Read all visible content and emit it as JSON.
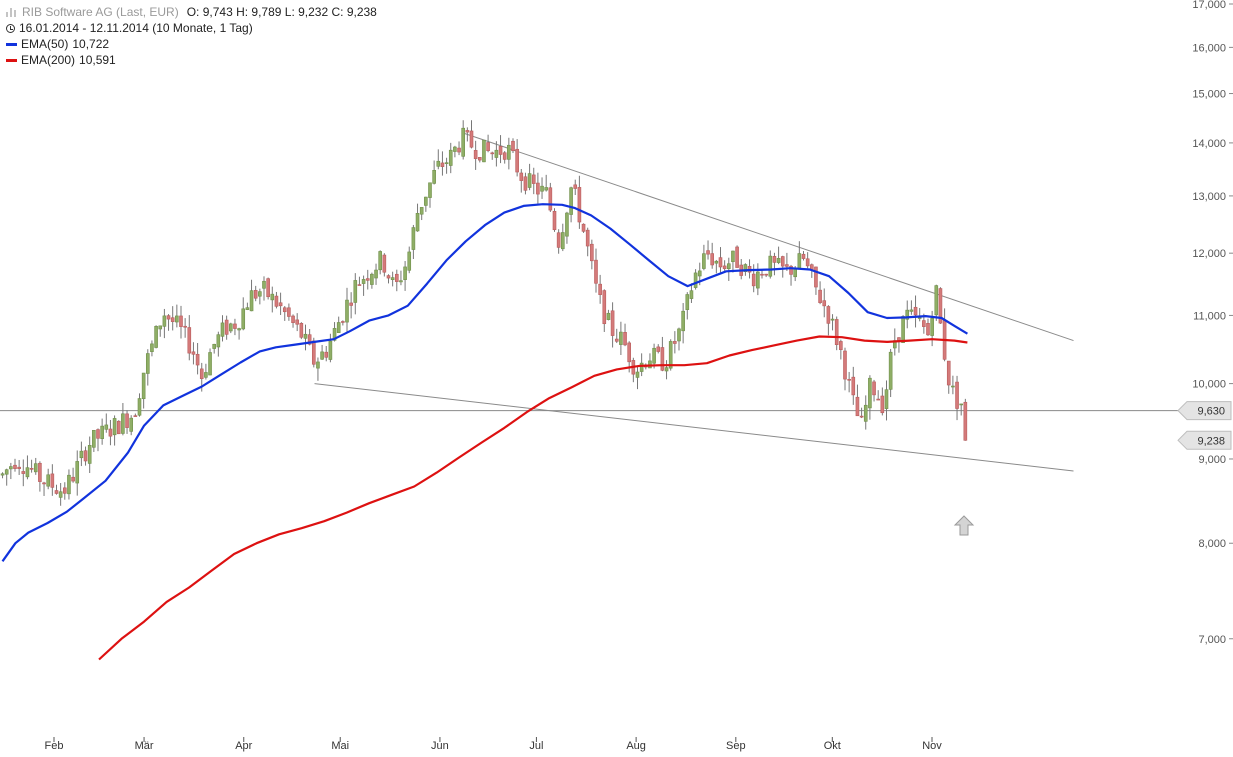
{
  "header": {
    "title": "RIB Software AG (Last, EUR)",
    "ohlc": "O: 9,743  H: 9,789  L: 9,232  C: 9,238",
    "range": "16.01.2014 - 12.11.2014 (10 Monate, 1 Tag)",
    "logo_icon": "bar-chart-logo-icon",
    "clock_icon": "clock-icon"
  },
  "legend": [
    {
      "label": "EMA(50)",
      "value": "10,722",
      "color": "#1133dd"
    },
    {
      "label": "EMA(200)",
      "value": "10,591",
      "color": "#dd1111"
    }
  ],
  "price_labels": {
    "current": "9,630",
    "last": "9,238"
  },
  "arrow_icon": "up-arrow-icon",
  "chart_data": {
    "type": "line",
    "title": "",
    "xlabel": "",
    "ylabel": "",
    "y_scale": "log",
    "ylim": [
      6800,
      17000
    ],
    "y_ticks": [
      {
        "v": 7000,
        "label": "7,000"
      },
      {
        "v": 8000,
        "label": "8,000"
      },
      {
        "v": 9000,
        "label": "9,000"
      },
      {
        "v": 10000,
        "label": "10,000"
      },
      {
        "v": 11000,
        "label": "11,000"
      },
      {
        "v": 12000,
        "label": "12,000"
      },
      {
        "v": 13000,
        "label": "13,000"
      },
      {
        "v": 14000,
        "label": "14,000"
      },
      {
        "v": 15000,
        "label": "15,000"
      },
      {
        "v": 16000,
        "label": "16,000"
      },
      {
        "v": 17000,
        "label": "17,000"
      }
    ],
    "x_ticks": [
      {
        "date": "2014-02-01",
        "label": "Feb"
      },
      {
        "date": "2014-03-01",
        "label": "Mär"
      },
      {
        "date": "2014-04-01",
        "label": "Apr"
      },
      {
        "date": "2014-05-01",
        "label": "Mai"
      },
      {
        "date": "2014-06-01",
        "label": "Jun"
      },
      {
        "date": "2014-07-01",
        "label": "Jul"
      },
      {
        "date": "2014-08-01",
        "label": "Aug"
      },
      {
        "date": "2014-09-01",
        "label": "Sep"
      },
      {
        "date": "2014-10-01",
        "label": "Okt"
      },
      {
        "date": "2014-11-01",
        "label": "Nov"
      }
    ],
    "x_range": [
      "2014-01-16",
      "2014-12-15"
    ],
    "price_path": [
      [
        "2014-01-16",
        8800
      ],
      [
        "2014-01-20",
        9000
      ],
      [
        "2014-01-24",
        8900
      ],
      [
        "2014-01-28",
        8750
      ],
      [
        "2014-02-04",
        8600
      ],
      [
        "2014-02-07",
        8800
      ],
      [
        "2014-02-12",
        9200
      ],
      [
        "2014-02-17",
        9350
      ],
      [
        "2014-02-21",
        9450
      ],
      [
        "2014-02-26",
        9600
      ],
      [
        "2014-03-01",
        10200
      ],
      [
        "2014-03-04",
        10600
      ],
      [
        "2014-03-07",
        11050
      ],
      [
        "2014-03-12",
        10800
      ],
      [
        "2014-03-16",
        10500
      ],
      [
        "2014-03-19",
        10100
      ],
      [
        "2014-03-22",
        10500
      ],
      [
        "2014-03-26",
        10800
      ],
      [
        "2014-03-30",
        10900
      ],
      [
        "2014-04-03",
        11300
      ],
      [
        "2014-04-07",
        11400
      ],
      [
        "2014-04-11",
        11200
      ],
      [
        "2014-04-15",
        10950
      ],
      [
        "2014-04-19",
        10700
      ],
      [
        "2014-04-23",
        10300
      ],
      [
        "2014-04-27",
        10500
      ],
      [
        "2014-05-01",
        10950
      ],
      [
        "2014-05-06",
        11500
      ],
      [
        "2014-05-10",
        11700
      ],
      [
        "2014-05-14",
        11900
      ],
      [
        "2014-05-18",
        11400
      ],
      [
        "2014-05-22",
        11900
      ],
      [
        "2014-05-25",
        12700
      ],
      [
        "2014-05-28",
        13100
      ],
      [
        "2014-05-31",
        13500
      ],
      [
        "2014-06-04",
        13700
      ],
      [
        "2014-06-08",
        14100
      ],
      [
        "2014-06-12",
        13900
      ],
      [
        "2014-06-17",
        13800
      ],
      [
        "2014-06-22",
        13900
      ],
      [
        "2014-06-26",
        13400
      ],
      [
        "2014-06-30",
        13150
      ],
      [
        "2014-07-04",
        13050
      ],
      [
        "2014-07-08",
        12200
      ],
      [
        "2014-07-12",
        13200
      ],
      [
        "2014-07-16",
        12300
      ],
      [
        "2014-07-20",
        11300
      ],
      [
        "2014-07-24",
        10800
      ],
      [
        "2014-07-28",
        10600
      ],
      [
        "2014-08-01",
        10200
      ],
      [
        "2014-08-05",
        10400
      ],
      [
        "2014-08-10",
        10300
      ],
      [
        "2014-08-15",
        10800
      ],
      [
        "2014-08-19",
        11600
      ],
      [
        "2014-08-23",
        12000
      ],
      [
        "2014-08-27",
        11800
      ],
      [
        "2014-09-01",
        11900
      ],
      [
        "2014-09-06",
        11600
      ],
      [
        "2014-09-11",
        11800
      ],
      [
        "2014-09-17",
        11700
      ],
      [
        "2014-09-22",
        11900
      ],
      [
        "2014-09-26",
        11400
      ],
      [
        "2014-09-30",
        11000
      ],
      [
        "2014-10-04",
        10400
      ],
      [
        "2014-10-07",
        9800
      ],
      [
        "2014-10-10",
        9400
      ],
      [
        "2014-10-13",
        10000
      ],
      [
        "2014-10-17",
        9700
      ],
      [
        "2014-10-20",
        10600
      ],
      [
        "2014-10-24",
        11000
      ],
      [
        "2014-10-28",
        10900
      ],
      [
        "2014-10-31",
        10700
      ],
      [
        "2014-11-02",
        11500
      ],
      [
        "2014-11-04",
        10700
      ],
      [
        "2014-11-06",
        10100
      ],
      [
        "2014-11-08",
        9800
      ],
      [
        "2014-11-11",
        9700
      ],
      [
        "2014-11-12",
        9238
      ]
    ],
    "series": [
      {
        "name": "EMA(50)",
        "color": "#1133dd",
        "points": [
          [
            "2014-01-16",
            7800
          ],
          [
            "2014-01-20",
            8000
          ],
          [
            "2014-01-24",
            8120
          ],
          [
            "2014-01-30",
            8230
          ],
          [
            "2014-02-05",
            8360
          ],
          [
            "2014-02-10",
            8510
          ],
          [
            "2014-02-17",
            8730
          ],
          [
            "2014-02-24",
            9080
          ],
          [
            "2014-03-01",
            9430
          ],
          [
            "2014-03-07",
            9700
          ],
          [
            "2014-03-13",
            9830
          ],
          [
            "2014-03-19",
            9960
          ],
          [
            "2014-03-25",
            10130
          ],
          [
            "2014-03-31",
            10300
          ],
          [
            "2014-04-06",
            10460
          ],
          [
            "2014-04-11",
            10520
          ],
          [
            "2014-04-17",
            10560
          ],
          [
            "2014-04-23",
            10600
          ],
          [
            "2014-04-29",
            10640
          ],
          [
            "2014-05-04",
            10760
          ],
          [
            "2014-05-10",
            10920
          ],
          [
            "2014-05-16",
            11000
          ],
          [
            "2014-05-22",
            11150
          ],
          [
            "2014-05-28",
            11500
          ],
          [
            "2014-06-03",
            11880
          ],
          [
            "2014-06-09",
            12200
          ],
          [
            "2014-06-15",
            12480
          ],
          [
            "2014-06-21",
            12700
          ],
          [
            "2014-06-27",
            12820
          ],
          [
            "2014-07-03",
            12850
          ],
          [
            "2014-07-09",
            12840
          ],
          [
            "2014-07-13",
            12780
          ],
          [
            "2014-07-18",
            12650
          ],
          [
            "2014-07-24",
            12420
          ],
          [
            "2014-07-30",
            12150
          ],
          [
            "2014-08-05",
            11880
          ],
          [
            "2014-08-11",
            11620
          ],
          [
            "2014-08-17",
            11460
          ],
          [
            "2014-08-23",
            11580
          ],
          [
            "2014-08-29",
            11700
          ],
          [
            "2014-09-05",
            11720
          ],
          [
            "2014-09-12",
            11730
          ],
          [
            "2014-09-18",
            11750
          ],
          [
            "2014-09-24",
            11730
          ],
          [
            "2014-09-30",
            11620
          ],
          [
            "2014-10-06",
            11350
          ],
          [
            "2014-10-12",
            11050
          ],
          [
            "2014-10-18",
            10960
          ],
          [
            "2014-10-24",
            10970
          ],
          [
            "2014-10-30",
            10990
          ],
          [
            "2014-11-04",
            10960
          ],
          [
            "2014-11-08",
            10840
          ],
          [
            "2014-11-12",
            10722
          ]
        ]
      },
      {
        "name": "EMA(200)",
        "color": "#dd1111",
        "points": [
          [
            "2014-02-15",
            6800
          ],
          [
            "2014-02-22",
            7000
          ],
          [
            "2014-03-01",
            7170
          ],
          [
            "2014-03-08",
            7370
          ],
          [
            "2014-03-15",
            7520
          ],
          [
            "2014-03-22",
            7700
          ],
          [
            "2014-03-29",
            7880
          ],
          [
            "2014-04-05",
            8000
          ],
          [
            "2014-04-12",
            8100
          ],
          [
            "2014-04-19",
            8170
          ],
          [
            "2014-04-26",
            8250
          ],
          [
            "2014-05-03",
            8350
          ],
          [
            "2014-05-10",
            8460
          ],
          [
            "2014-05-17",
            8560
          ],
          [
            "2014-05-24",
            8660
          ],
          [
            "2014-05-31",
            8830
          ],
          [
            "2014-06-07",
            9020
          ],
          [
            "2014-06-14",
            9210
          ],
          [
            "2014-06-21",
            9400
          ],
          [
            "2014-06-28",
            9610
          ],
          [
            "2014-07-05",
            9800
          ],
          [
            "2014-07-12",
            9950
          ],
          [
            "2014-07-19",
            10110
          ],
          [
            "2014-07-26",
            10200
          ],
          [
            "2014-08-02",
            10250
          ],
          [
            "2014-08-09",
            10260
          ],
          [
            "2014-08-16",
            10260
          ],
          [
            "2014-08-23",
            10290
          ],
          [
            "2014-08-30",
            10400
          ],
          [
            "2014-09-06",
            10480
          ],
          [
            "2014-09-13",
            10550
          ],
          [
            "2014-09-20",
            10620
          ],
          [
            "2014-09-27",
            10680
          ],
          [
            "2014-10-04",
            10670
          ],
          [
            "2014-10-11",
            10620
          ],
          [
            "2014-10-18",
            10600
          ],
          [
            "2014-10-25",
            10620
          ],
          [
            "2014-11-01",
            10640
          ],
          [
            "2014-11-08",
            10620
          ],
          [
            "2014-11-12",
            10591
          ]
        ]
      }
    ],
    "trendlines": [
      {
        "from": [
          "2014-06-08",
          14200
        ],
        "to": [
          "2014-12-15",
          10620
        ]
      },
      {
        "from": [
          "2014-04-23",
          10000
        ],
        "to": [
          "2014-12-15",
          8850
        ]
      }
    ],
    "horizontal_line": {
      "value": 9630
    },
    "current_price": 9630,
    "last_price": 9238,
    "grid": false,
    "legend_position": "top-left"
  }
}
